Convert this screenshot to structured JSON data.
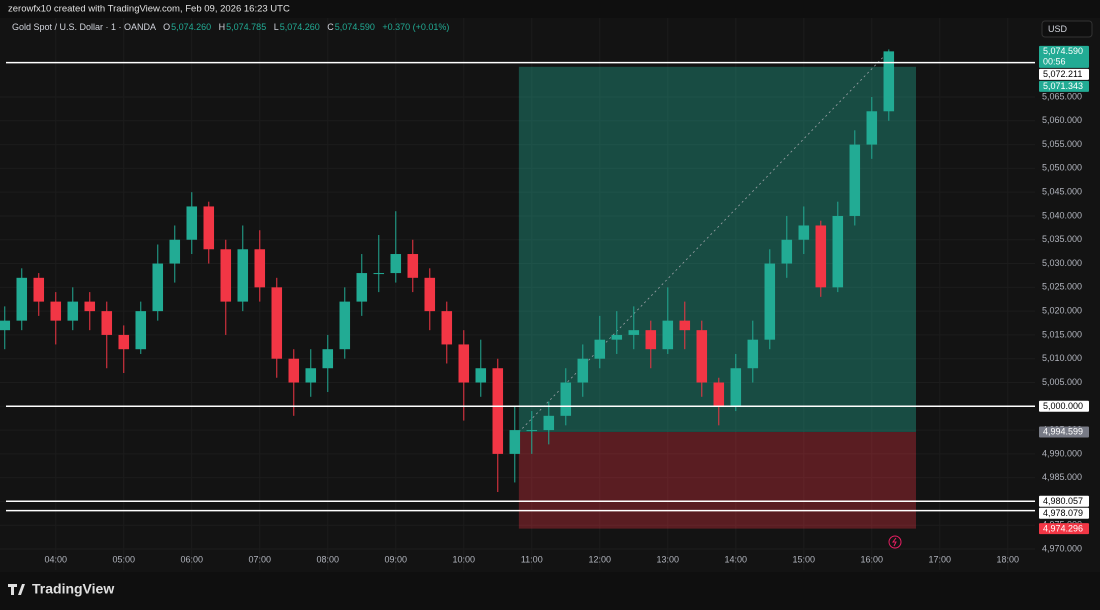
{
  "header": {
    "credit": "zerowfx10 created with TradingView.com, Feb 09, 2026 16:23 UTC",
    "brand": "TradingView"
  },
  "chart_data": {
    "type": "candlestick",
    "symbol": "Gold Spot / U.S. Dollar · 1 · OANDA",
    "ohlc_legend": {
      "open_key": "O",
      "open": {
        "value": 5074.26,
        "label": "5,074.260"
      },
      "high_key": "H",
      "high": {
        "value": 5074.785,
        "label": "5,074.785"
      },
      "low_key": "L",
      "low": {
        "value": 5074.26,
        "label": "5,074.260"
      },
      "close_key": "C",
      "close": {
        "value": 5074.59,
        "label": "5,074.590"
      },
      "change": "+0.370 (+0.01%)"
    },
    "currency": "USD",
    "up_color": "#22ab94",
    "down_color": "#f23645",
    "x": [
      3.25,
      3.5,
      3.75,
      4,
      4.25,
      4.5,
      4.75,
      5,
      5.25,
      5.5,
      5.75,
      6,
      6.25,
      6.5,
      6.75,
      7,
      7.25,
      7.5,
      7.75,
      8,
      8.25,
      8.5,
      8.75,
      9,
      9.25,
      9.5,
      9.75,
      10,
      10.25,
      10.5,
      10.75,
      11,
      11.25,
      11.5,
      11.75,
      12,
      12.25,
      12.5,
      12.75,
      13,
      13.25,
      13.5,
      13.75,
      14,
      14.25,
      14.5,
      14.75,
      15,
      15.25,
      15.5,
      15.75,
      16,
      16.25
    ],
    "ohlc": [
      [
        5016,
        5021,
        5012,
        5018
      ],
      [
        5018,
        5029,
        5016,
        5027
      ],
      [
        5027,
        5028,
        5019,
        5022
      ],
      [
        5022,
        5024,
        5013,
        5018
      ],
      [
        5018,
        5025,
        5016,
        5022
      ],
      [
        5022,
        5024,
        5016,
        5020
      ],
      [
        5020,
        5022,
        5008,
        5015
      ],
      [
        5015,
        5017,
        5007,
        5012
      ],
      [
        5012,
        5022,
        5011,
        5020
      ],
      [
        5020,
        5034,
        5018,
        5030
      ],
      [
        5030,
        5038,
        5026,
        5035
      ],
      [
        5035,
        5045,
        5032,
        5042
      ],
      [
        5042,
        5043,
        5030,
        5033
      ],
      [
        5033,
        5035,
        5015,
        5022
      ],
      [
        5022,
        5038,
        5020,
        5033
      ],
      [
        5033,
        5037,
        5022,
        5025
      ],
      [
        5025,
        5027,
        5006,
        5010
      ],
      [
        5010,
        5012,
        4998,
        5005
      ],
      [
        5005,
        5012,
        5002,
        5008
      ],
      [
        5008,
        5015,
        5003,
        5012
      ],
      [
        5012,
        5025,
        5010,
        5022
      ],
      [
        5022,
        5032,
        5019,
        5028
      ],
      [
        5028,
        5036,
        5024,
        5028
      ],
      [
        5028,
        5041,
        5026,
        5032
      ],
      [
        5032,
        5035,
        5024,
        5027
      ],
      [
        5027,
        5029,
        5016,
        5020
      ],
      [
        5020,
        5022,
        5009,
        5013
      ],
      [
        5013,
        5016,
        4997,
        5005
      ],
      [
        5005,
        5014,
        5002,
        5008
      ],
      [
        5008,
        5010,
        4982,
        4990
      ],
      [
        4990,
        5000,
        4984,
        4995
      ],
      [
        4995,
        4999,
        4990,
        4995
      ],
      [
        4995,
        5001,
        4992,
        4998
      ],
      [
        4998,
        5008,
        4996,
        5005
      ],
      [
        5005,
        5013,
        5002,
        5010
      ],
      [
        5010,
        5019,
        5008,
        5014
      ],
      [
        5014,
        5020,
        5011,
        5015
      ],
      [
        5015,
        5021,
        5012,
        5016
      ],
      [
        5016,
        5018,
        5008,
        5012
      ],
      [
        5012,
        5025,
        5011,
        5018
      ],
      [
        5018,
        5022,
        5012,
        5016
      ],
      [
        5016,
        5018,
        5002,
        5005
      ],
      [
        5005,
        5006,
        4996,
        5000
      ],
      [
        5000,
        5011,
        4999,
        5008
      ],
      [
        5008,
        5018,
        5005,
        5014
      ],
      [
        5014,
        5033,
        5012,
        5030
      ],
      [
        5030,
        5040,
        5027,
        5035
      ],
      [
        5035,
        5042,
        5032,
        5038
      ],
      [
        5038,
        5039,
        5023,
        5025
      ],
      [
        5025,
        5043,
        5024,
        5040
      ],
      [
        5040,
        5058,
        5038,
        5055
      ],
      [
        5055,
        5065,
        5052,
        5062
      ],
      [
        5062,
        5075,
        5060,
        5074.59
      ]
    ],
    "xlim": [
      3.18,
      18.4
    ],
    "ylim": [
      4965.6,
      5081.6
    ],
    "grid": true,
    "xticks": [
      {
        "value": 4,
        "label": "04:00"
      },
      {
        "value": 5,
        "label": "05:00"
      },
      {
        "value": 6,
        "label": "06:00"
      },
      {
        "value": 7,
        "label": "07:00"
      },
      {
        "value": 8,
        "label": "08:00"
      },
      {
        "value": 9,
        "label": "09:00"
      },
      {
        "value": 10,
        "label": "10:00"
      },
      {
        "value": 11,
        "label": "11:00"
      },
      {
        "value": 12,
        "label": "12:00"
      },
      {
        "value": 13,
        "label": "13:00"
      },
      {
        "value": 14,
        "label": "14:00"
      },
      {
        "value": 15,
        "label": "15:00"
      },
      {
        "value": 16,
        "label": "16:00"
      },
      {
        "value": 17,
        "label": "17:00"
      },
      {
        "value": 18,
        "label": "18:00"
      }
    ],
    "yticks": [
      {
        "value": 4970,
        "label": "4,970.000"
      },
      {
        "value": 4975,
        "label": "4,975.000"
      },
      {
        "value": 4980,
        "label": "4,980.000"
      },
      {
        "value": 4985,
        "label": "4,985.000"
      },
      {
        "value": 4990,
        "label": "4,990.000"
      },
      {
        "value": 4995,
        "label": "4,995.000"
      },
      {
        "value": 5000,
        "label": "5,000.000"
      },
      {
        "value": 5005,
        "label": "5,005.000"
      },
      {
        "value": 5010,
        "label": "5,010.000"
      },
      {
        "value": 5015,
        "label": "5,015.000"
      },
      {
        "value": 5020,
        "label": "5,020.000"
      },
      {
        "value": 5025,
        "label": "5,025.000"
      },
      {
        "value": 5030,
        "label": "5,030.000"
      },
      {
        "value": 5035,
        "label": "5,035.000"
      },
      {
        "value": 5040,
        "label": "5,040.000"
      },
      {
        "value": 5045,
        "label": "5,045.000"
      },
      {
        "value": 5050,
        "label": "5,050.000"
      },
      {
        "value": 5055,
        "label": "5,055.000"
      },
      {
        "value": 5060,
        "label": "5,060.000"
      },
      {
        "value": 5065,
        "label": "5,065.000"
      }
    ],
    "hlines": [
      {
        "value": 5072.211,
        "label": "5,072.211"
      },
      {
        "value": 5000,
        "label": "5,000.000"
      },
      {
        "value": 4980.057,
        "label": "4,980.057"
      },
      {
        "value": 4978.079,
        "label": "4,978.079"
      }
    ],
    "position": {
      "start": 10.81,
      "end": 16.65,
      "entry": {
        "value": 4994.599,
        "label": "4,994.599"
      },
      "target": {
        "value": 5071.343,
        "label": "5,071.343"
      },
      "stop": {
        "value": 4974.296,
        "label": "4,974.296"
      }
    },
    "last_price": {
      "value": 5074.59,
      "label": "5,074.590",
      "countdown": "00:56"
    }
  }
}
